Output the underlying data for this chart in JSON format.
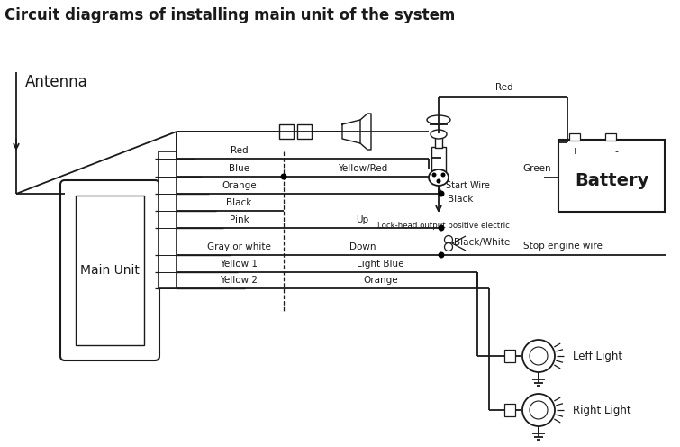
{
  "title": "Circuit diagrams of installing main unit of the system",
  "title_fs": 12,
  "bg": "#ffffff",
  "wc": "#1a1a1a",
  "tc": "#1a1a1a",
  "antenna_label": "Antenna",
  "main_unit_label": "Main Unit",
  "battery_label": "Battery",
  "start_wire": "Start Wire",
  "black_lbl": "Black",
  "green_lbl": "Green",
  "red_lbl": "Red",
  "lock_head": "Lock-head output positive electric",
  "bw_lbl": "Black/White",
  "stop_engine": "Stop engine wire",
  "left_light": "Leff Light",
  "right_light": "Right Light",
  "labels_left": [
    "Red",
    "Blue",
    "Orange",
    "Black",
    "Pink",
    "Gray or white",
    "Yellow 1",
    "Yellow 2"
  ],
  "labels_right": [
    "Yellow/Red",
    "",
    "Up",
    "Down",
    "Light Blue",
    "Orange"
  ]
}
